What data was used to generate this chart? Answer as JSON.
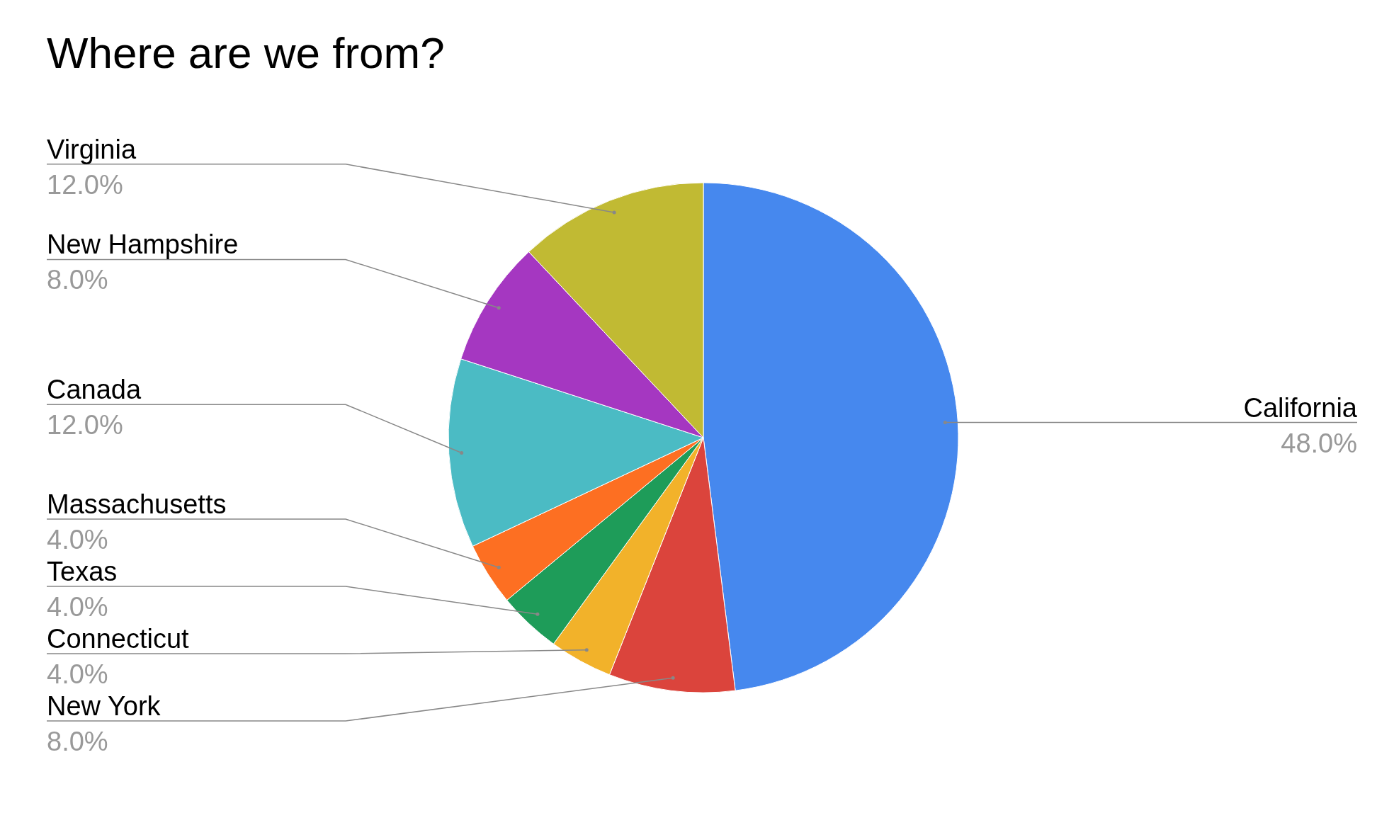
{
  "chart_data": {
    "type": "pie",
    "title": "Where are we from?",
    "categories": [
      "California",
      "New York",
      "Connecticut",
      "Texas",
      "Massachusetts",
      "Canada",
      "New Hampshire",
      "Virginia"
    ],
    "values": [
      48,
      8,
      4,
      4,
      4,
      12,
      8,
      12
    ],
    "colors": [
      "#4688ee",
      "#db443c",
      "#f2b22a",
      "#1e9c59",
      "#fd6f22",
      "#4bbbc4",
      "#a537c1",
      "#c1ba33"
    ],
    "value_labels": [
      "48.0%",
      "8.0%",
      "4.0%",
      "4.0%",
      "4.0%",
      "12.0%",
      "8.0%",
      "12.0%"
    ]
  }
}
